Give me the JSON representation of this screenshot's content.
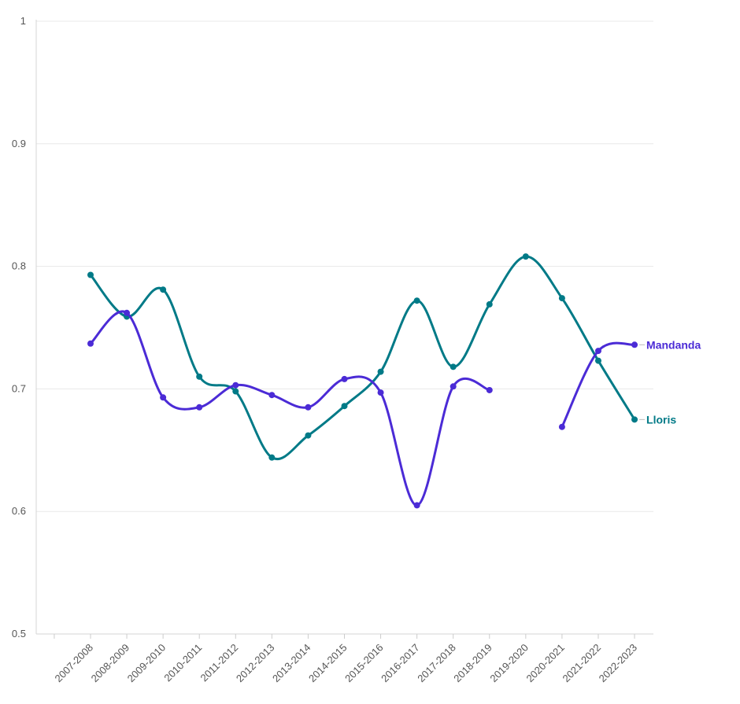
{
  "chart_data": {
    "type": "line",
    "categories": [
      "2007-2008",
      "2008-2009",
      "2009-2010",
      "2010-2011",
      "2011-2012",
      "2012-2013",
      "2013-2014",
      "2014-2015",
      "2015-2016",
      "2016-2017",
      "2017-2018",
      "2018-2019",
      "2019-2020",
      "2020-2021",
      "2021-2022",
      "2022-2023"
    ],
    "ylim": [
      0.5,
      1
    ],
    "yticks": [
      0.5,
      0.6,
      0.7,
      0.8,
      0.9,
      1
    ],
    "ytick_labels": [
      "0.5",
      "0.6",
      "0.7",
      "0.8",
      "0.9",
      "1"
    ],
    "grid": true,
    "legend": "inline-right",
    "series": [
      {
        "name": "Mandanda",
        "color": "#4b2bd6",
        "values": [
          0.737,
          0.762,
          0.693,
          0.685,
          0.703,
          0.695,
          0.685,
          0.708,
          0.697,
          0.605,
          0.702,
          0.699,
          null,
          0.669,
          0.731,
          0.736
        ]
      },
      {
        "name": "Lloris",
        "color": "#007a87",
        "values": [
          0.793,
          0.759,
          0.781,
          0.71,
          0.698,
          0.644,
          0.662,
          0.686,
          0.714,
          0.772,
          0.718,
          0.769,
          0.808,
          0.774,
          0.723,
          0.675
        ]
      }
    ]
  }
}
